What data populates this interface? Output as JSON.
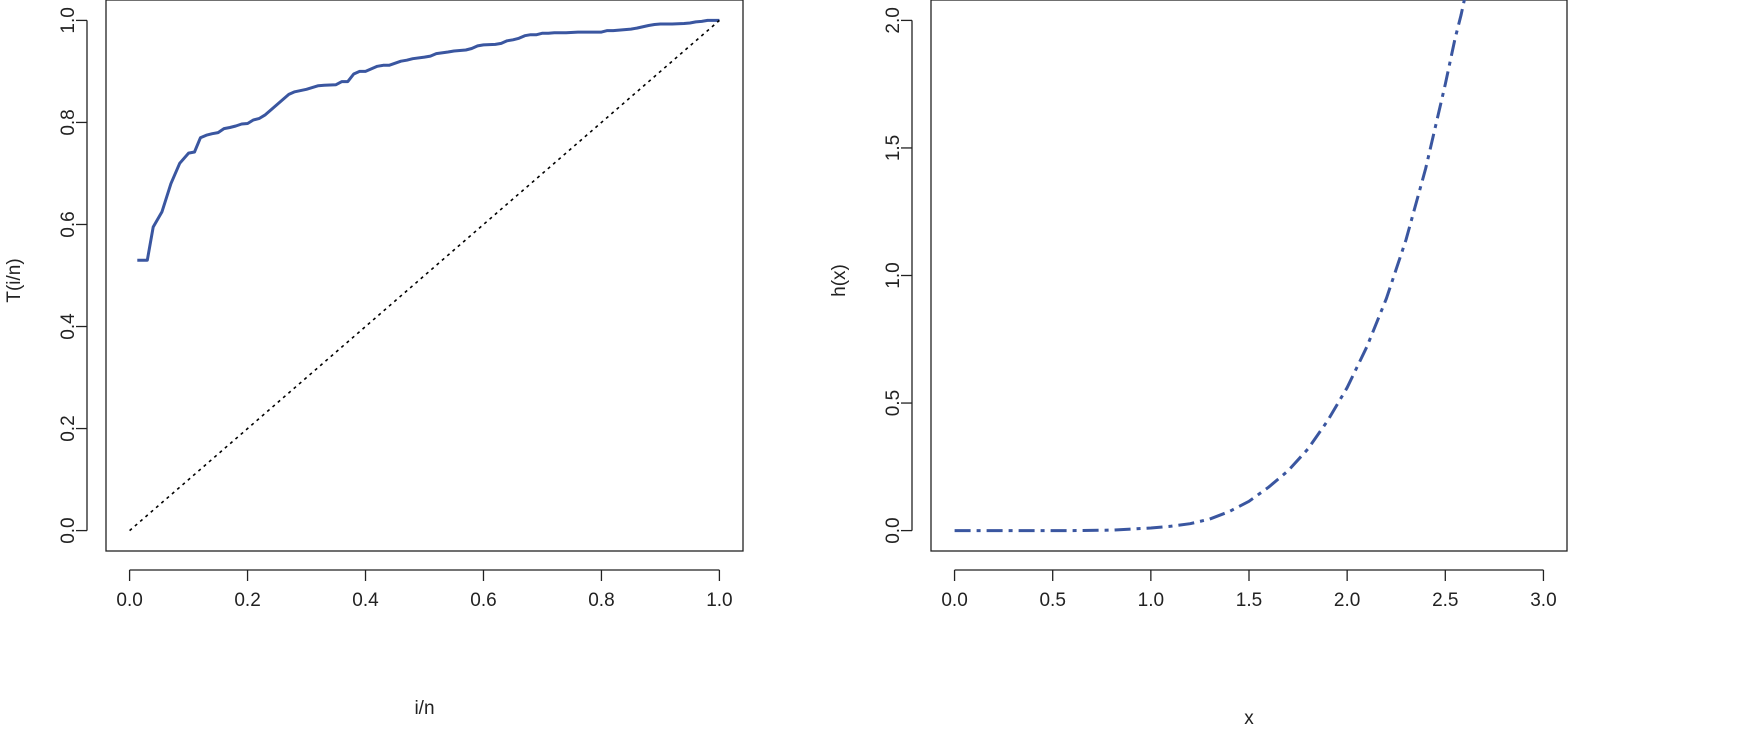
{
  "chart_data": [
    {
      "type": "line",
      "title": "",
      "xlabel": "i/n",
      "ylabel": "T(i/n)",
      "xlim": [
        -0.04,
        1.04
      ],
      "ylim": [
        -0.04,
        1.04
      ],
      "xticks": [
        "0.0",
        "0.2",
        "0.4",
        "0.6",
        "0.8",
        "1.0"
      ],
      "yticks": [
        "0.0",
        "0.2",
        "0.4",
        "0.6",
        "0.8",
        "1.0"
      ],
      "grid": false,
      "series": [
        {
          "style": "solid",
          "color": "#3a56a0",
          "x": [
            0.013,
            0.03,
            0.04,
            0.055,
            0.07,
            0.085,
            0.1,
            0.11,
            0.12,
            0.13,
            0.14,
            0.15,
            0.16,
            0.17,
            0.18,
            0.19,
            0.2,
            0.21,
            0.22,
            0.23,
            0.24,
            0.25,
            0.26,
            0.27,
            0.28,
            0.3,
            0.32,
            0.33,
            0.35,
            0.36,
            0.37,
            0.38,
            0.39,
            0.4,
            0.42,
            0.43,
            0.44,
            0.46,
            0.47,
            0.48,
            0.5,
            0.51,
            0.52,
            0.54,
            0.55,
            0.57,
            0.58,
            0.59,
            0.6,
            0.62,
            0.63,
            0.64,
            0.65,
            0.66,
            0.67,
            0.68,
            0.69,
            0.7,
            0.71,
            0.72,
            0.74,
            0.76,
            0.78,
            0.8,
            0.81,
            0.82,
            0.84,
            0.85,
            0.86,
            0.88,
            0.89,
            0.9,
            0.92,
            0.94,
            0.95,
            0.96,
            0.97,
            0.98,
            0.99,
            1.0
          ],
          "y": [
            0.53,
            0.53,
            0.595,
            0.625,
            0.68,
            0.72,
            0.74,
            0.742,
            0.77,
            0.775,
            0.778,
            0.78,
            0.788,
            0.79,
            0.793,
            0.797,
            0.798,
            0.805,
            0.808,
            0.815,
            0.825,
            0.835,
            0.845,
            0.855,
            0.86,
            0.865,
            0.872,
            0.873,
            0.874,
            0.88,
            0.88,
            0.895,
            0.9,
            0.9,
            0.91,
            0.912,
            0.912,
            0.92,
            0.922,
            0.925,
            0.928,
            0.93,
            0.935,
            0.938,
            0.94,
            0.942,
            0.945,
            0.95,
            0.952,
            0.953,
            0.955,
            0.96,
            0.962,
            0.965,
            0.97,
            0.972,
            0.972,
            0.975,
            0.975,
            0.976,
            0.976,
            0.977,
            0.977,
            0.977,
            0.98,
            0.98,
            0.982,
            0.983,
            0.985,
            0.99,
            0.992,
            0.993,
            0.993,
            0.994,
            0.995,
            0.997,
            0.998,
            1.0,
            1.0,
            1.0
          ]
        },
        {
          "style": "dotted",
          "color": "#000000",
          "x": [
            0.0,
            1.0
          ],
          "y": [
            0.0,
            1.0
          ]
        }
      ]
    },
    {
      "type": "line",
      "title": "",
      "xlabel": "x",
      "ylabel": "h(x)",
      "xlim": [
        -0.12,
        3.12
      ],
      "ylim": [
        -0.08,
        2.08
      ],
      "xticks": [
        "0.0",
        "0.5",
        "1.0",
        "1.5",
        "2.0",
        "2.5",
        "3.0"
      ],
      "yticks": [
        "0.0",
        "0.5",
        "1.0",
        "1.5",
        "2.0"
      ],
      "grid": false,
      "series": [
        {
          "style": "dashdot",
          "color": "#3a56a0",
          "x": [
            0.0,
            0.2,
            0.4,
            0.6,
            0.8,
            1.0,
            1.1,
            1.2,
            1.3,
            1.4,
            1.5,
            1.6,
            1.7,
            1.8,
            1.9,
            2.0,
            2.1,
            2.2,
            2.3,
            2.4,
            2.5,
            2.55,
            2.58,
            2.6
          ],
          "y": [
            0.0,
            0.0,
            0.0,
            0.0,
            0.002,
            0.01,
            0.017,
            0.027,
            0.045,
            0.075,
            0.115,
            0.17,
            0.235,
            0.32,
            0.43,
            0.56,
            0.72,
            0.91,
            1.14,
            1.42,
            1.75,
            1.93,
            2.02,
            2.09
          ]
        }
      ]
    }
  ]
}
